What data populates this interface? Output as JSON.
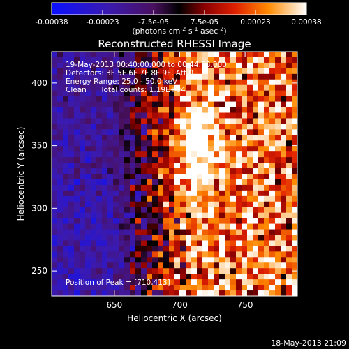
{
  "chart_data": {
    "type": "heatmap",
    "title": "Reconstructed RHESSI Image",
    "xlabel": "Heliocentric X (arcsec)",
    "ylabel": "Heliocentric Y (arcsec)",
    "xlim": [
      602,
      790
    ],
    "ylim": [
      230,
      425
    ],
    "xticks": [
      650,
      700,
      750
    ],
    "yticks": [
      250,
      300,
      350,
      400
    ],
    "colorbar": {
      "ticks": [
        "-0.00038",
        "-0.00023",
        "-7.5e-05",
        "7.5e-05",
        "0.00023",
        "0.00038"
      ],
      "range": [
        -0.00038,
        0.00038
      ],
      "unit_label": "(photons cm",
      "unit_sup1": "-2",
      "unit_mid": " s",
      "unit_sup2": "-1",
      "unit_mid2": " asec",
      "unit_sup3": "-2",
      "unit_end": ")"
    },
    "annotations": {
      "line1": "19-May-2013 00:40:00.000 to 00:44:58.000",
      "line2": "Detectors: 3F 5F 6F 7F 8F 9F, Att 0",
      "line3": "Energy Range: 25.0 - 50.0 keV",
      "line4": "Clean      Total counts: 1.19E+04",
      "peak": "Position of Peak = [710,413]"
    },
    "footer": "18-May-2013 21:09"
  }
}
